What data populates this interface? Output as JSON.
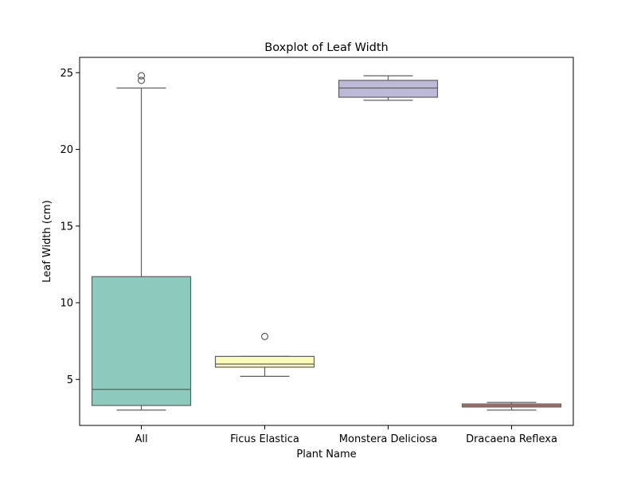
{
  "chart_data": {
    "type": "boxplot",
    "title": "Boxplot of Leaf Width",
    "xlabel": "Plant Name",
    "ylabel": "Leaf Width (cm)",
    "ylim": [
      2,
      26
    ],
    "yticks": [
      5,
      10,
      15,
      20,
      25
    ],
    "grid": false,
    "categories": [
      "All",
      "Ficus Elastica",
      "Monstera Deliciosa",
      "Dracaena Reflexa"
    ],
    "boxes": [
      {
        "category": "All",
        "whisker_low": 3.0,
        "q1": 3.3,
        "median": 4.35,
        "q3": 11.7,
        "whisker_high": 24.0,
        "outliers": [
          24.5,
          24.8
        ],
        "color": "#8dc9bc"
      },
      {
        "category": "Ficus Elastica",
        "whisker_low": 5.2,
        "q1": 5.8,
        "median": 6.0,
        "q3": 6.5,
        "whisker_high": 6.5,
        "outliers": [
          7.8
        ],
        "color": "#fbfbbb"
      },
      {
        "category": "Monstera Deliciosa",
        "whisker_low": 23.2,
        "q1": 23.4,
        "median": 24.0,
        "q3": 24.5,
        "whisker_high": 24.8,
        "outliers": [],
        "color": "#bdb9d8"
      },
      {
        "category": "Dracaena Reflexa",
        "whisker_low": 3.0,
        "q1": 3.2,
        "median": 3.3,
        "q3": 3.4,
        "whisker_high": 3.5,
        "outliers": [],
        "color": "#f07f72"
      }
    ]
  }
}
